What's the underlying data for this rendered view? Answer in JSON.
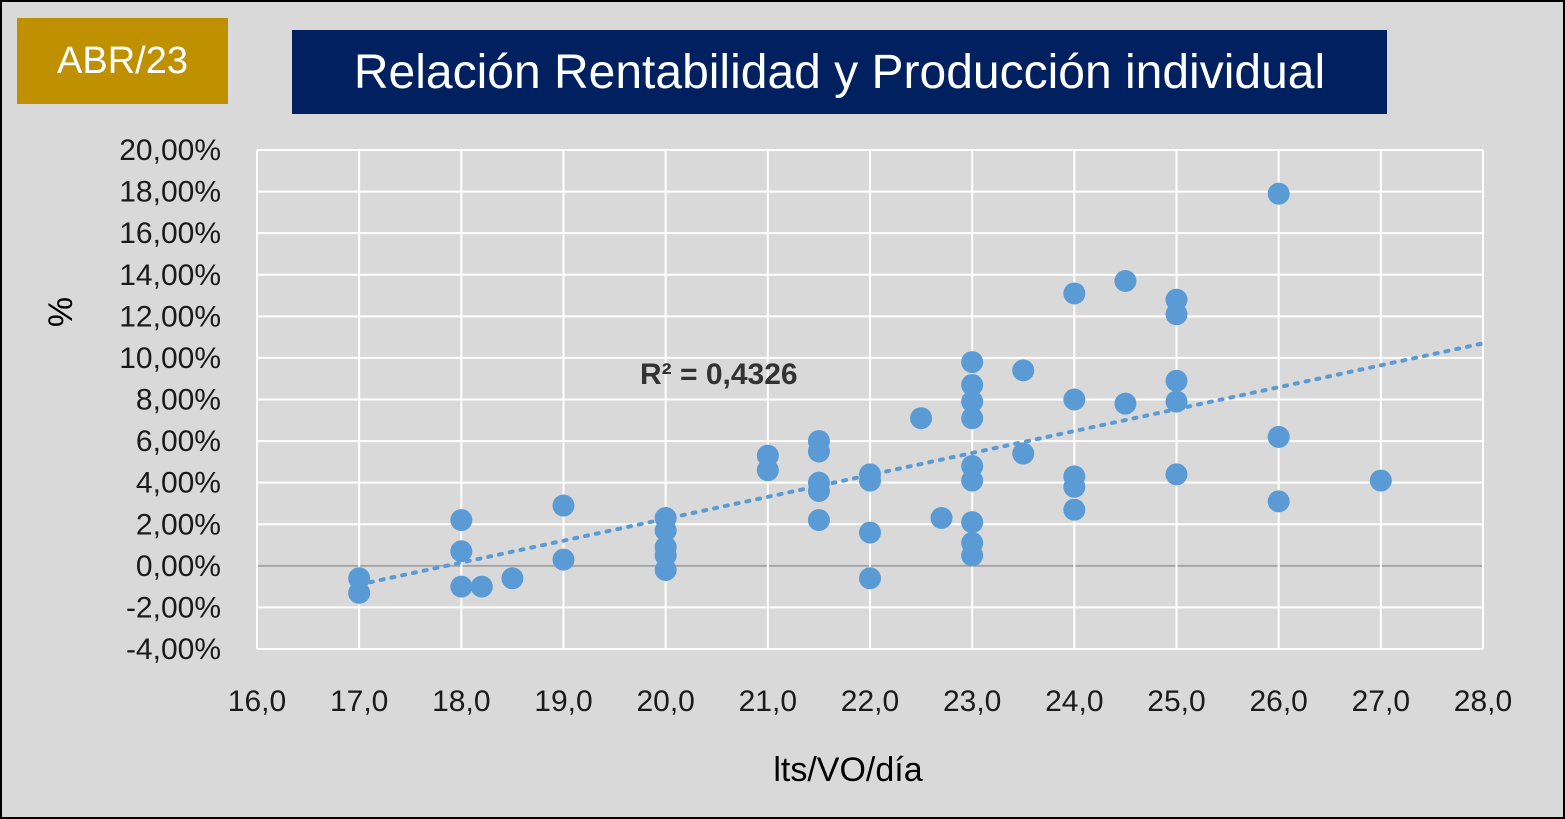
{
  "badge": {
    "label": "ABR/23"
  },
  "title": "Relación Rentabilidad y Producción individual",
  "colors": {
    "background": "#d9d9d9",
    "badge": "#bf9000",
    "title_box": "#002060",
    "marker": "#5b9bd5",
    "trendline": "#5b9bd5",
    "gridline": "#ffffff",
    "zero_line": "#a6a6a6"
  },
  "chart_data": {
    "type": "scatter",
    "title": "Relación Rentabilidad y Producción individual",
    "xlabel": "lts/VO/día",
    "ylabel": "%",
    "xlim": [
      16,
      28
    ],
    "ylim": [
      -4,
      20
    ],
    "x_ticks": [
      "16,0",
      "17,0",
      "18,0",
      "19,0",
      "20,0",
      "21,0",
      "22,0",
      "23,0",
      "24,0",
      "25,0",
      "26,0",
      "27,0",
      "28,0"
    ],
    "y_ticks": [
      "-4,00%",
      "-2,00%",
      "0,00%",
      "2,00%",
      "4,00%",
      "6,00%",
      "8,00%",
      "10,00%",
      "12,00%",
      "14,00%",
      "16,00%",
      "18,00%",
      "20,00%"
    ],
    "grid": true,
    "legend": "none",
    "annotation": "R² = 0,4326",
    "trendline": {
      "type": "linear",
      "style": "dotted",
      "x": [
        17,
        28
      ],
      "y": [
        -0.9,
        10.7
      ]
    },
    "points": [
      {
        "x": 17.0,
        "y": -0.6
      },
      {
        "x": 17.0,
        "y": -1.3
      },
      {
        "x": 18.0,
        "y": 2.2
      },
      {
        "x": 18.0,
        "y": 0.7
      },
      {
        "x": 18.0,
        "y": -1.0
      },
      {
        "x": 18.2,
        "y": -1.0
      },
      {
        "x": 18.5,
        "y": -0.6
      },
      {
        "x": 19.0,
        "y": 2.9
      },
      {
        "x": 19.0,
        "y": 0.3
      },
      {
        "x": 20.0,
        "y": 2.3
      },
      {
        "x": 20.0,
        "y": 1.7
      },
      {
        "x": 20.0,
        "y": 0.9
      },
      {
        "x": 20.0,
        "y": 0.5
      },
      {
        "x": 20.0,
        "y": -0.2
      },
      {
        "x": 21.0,
        "y": 5.3
      },
      {
        "x": 21.0,
        "y": 4.6
      },
      {
        "x": 21.5,
        "y": 6.0
      },
      {
        "x": 21.5,
        "y": 5.5
      },
      {
        "x": 21.5,
        "y": 4.0
      },
      {
        "x": 21.5,
        "y": 3.6
      },
      {
        "x": 21.5,
        "y": 2.2
      },
      {
        "x": 22.0,
        "y": 4.4
      },
      {
        "x": 22.0,
        "y": 4.1
      },
      {
        "x": 22.0,
        "y": 1.6
      },
      {
        "x": 22.0,
        "y": -0.6
      },
      {
        "x": 22.5,
        "y": 7.1
      },
      {
        "x": 22.7,
        "y": 2.3
      },
      {
        "x": 23.0,
        "y": 9.8
      },
      {
        "x": 23.0,
        "y": 8.7
      },
      {
        "x": 23.0,
        "y": 7.9
      },
      {
        "x": 23.0,
        "y": 7.1
      },
      {
        "x": 23.0,
        "y": 4.8
      },
      {
        "x": 23.0,
        "y": 4.1
      },
      {
        "x": 23.0,
        "y": 2.1
      },
      {
        "x": 23.0,
        "y": 1.1
      },
      {
        "x": 23.0,
        "y": 0.5
      },
      {
        "x": 23.5,
        "y": 9.4
      },
      {
        "x": 23.5,
        "y": 5.4
      },
      {
        "x": 24.0,
        "y": 13.1
      },
      {
        "x": 24.0,
        "y": 8.0
      },
      {
        "x": 24.0,
        "y": 4.3
      },
      {
        "x": 24.0,
        "y": 3.8
      },
      {
        "x": 24.0,
        "y": 2.7
      },
      {
        "x": 24.5,
        "y": 13.7
      },
      {
        "x": 24.5,
        "y": 7.8
      },
      {
        "x": 25.0,
        "y": 12.8
      },
      {
        "x": 25.0,
        "y": 12.1
      },
      {
        "x": 25.0,
        "y": 8.9
      },
      {
        "x": 25.0,
        "y": 7.9
      },
      {
        "x": 25.0,
        "y": 4.4
      },
      {
        "x": 26.0,
        "y": 17.9
      },
      {
        "x": 26.0,
        "y": 6.2
      },
      {
        "x": 26.0,
        "y": 3.1
      },
      {
        "x": 27.0,
        "y": 4.1
      }
    ]
  }
}
